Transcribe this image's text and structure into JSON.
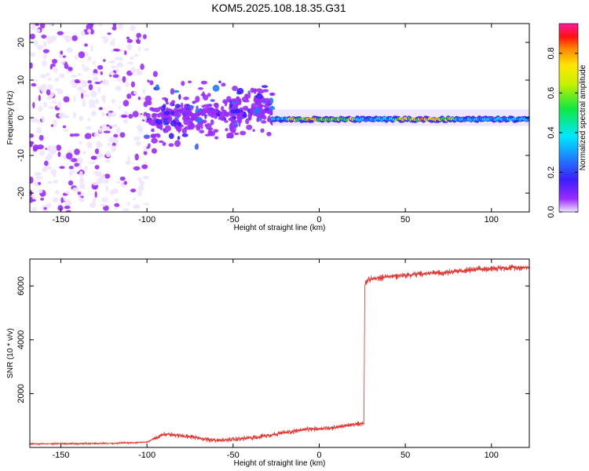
{
  "title": "KOM5.2025.108.18.35.G31",
  "chart_data": [
    {
      "type": "heatmap",
      "xlabel": "Height of straight line (km)",
      "ylabel": "Frequency (Hz)",
      "xlim": [
        -168,
        122
      ],
      "ylim": [
        -25,
        25
      ],
      "x_ticks": [
        -150,
        -100,
        -50,
        0,
        50,
        100
      ],
      "y_ticks": [
        -20,
        -10,
        0,
        10,
        20
      ],
      "colorbar": {
        "label": "Normalized spectral amplitude",
        "range": [
          0,
          0.95
        ],
        "ticks": [
          0.0,
          0.2,
          0.4,
          0.6,
          0.8
        ],
        "colormap": "rainbow (white-lavender at 0, violet, blue, cyan, green, yellow, red, magenta at max)"
      },
      "regions": [
        {
          "x_range": [
            -168,
            -100
          ],
          "freq_range": [
            -25,
            25
          ],
          "amplitude": "low, scattered noise (0.0-0.2)"
        },
        {
          "x_range": [
            -100,
            -27
          ],
          "freq_range": [
            -12,
            8
          ],
          "amplitude": "0.1-0.35, centred on 0 Hz, band narrowing and rising toward -27 km"
        },
        {
          "x_range": [
            -27,
            122
          ],
          "freq_range": [
            -1.5,
            1.5
          ],
          "amplitude": "0.3-0.95, continuous narrow line at 0 Hz, red peaks near -15 to 20 km and 50 to 80 km"
        }
      ]
    },
    {
      "type": "line",
      "xlabel": "Height of straight line (km)",
      "ylabel": "SNR (10 * v/v)",
      "xlim": [
        -168,
        122
      ],
      "ylim": [
        0,
        7000
      ],
      "x_ticks": [
        -150,
        -100,
        -50,
        0,
        50,
        100
      ],
      "y_ticks": [
        2000,
        4000,
        6000
      ],
      "color": "#e8302c",
      "x": [
        -168,
        -150,
        -120,
        -100,
        -90,
        -80,
        -70,
        -60,
        -50,
        -40,
        -30,
        -20,
        -10,
        0,
        10,
        20,
        26,
        26.5,
        28,
        30,
        40,
        50,
        60,
        70,
        80,
        90,
        100,
        110,
        122
      ],
      "y": [
        130,
        140,
        150,
        200,
        500,
        450,
        350,
        250,
        300,
        350,
        450,
        550,
        650,
        700,
        750,
        850,
        900,
        6100,
        6200,
        6250,
        6350,
        6400,
        6450,
        6500,
        6550,
        6600,
        6650,
        6680,
        6700
      ],
      "noise_amplitude": "approx +/-100 below 26 km, +/-150 above"
    }
  ]
}
